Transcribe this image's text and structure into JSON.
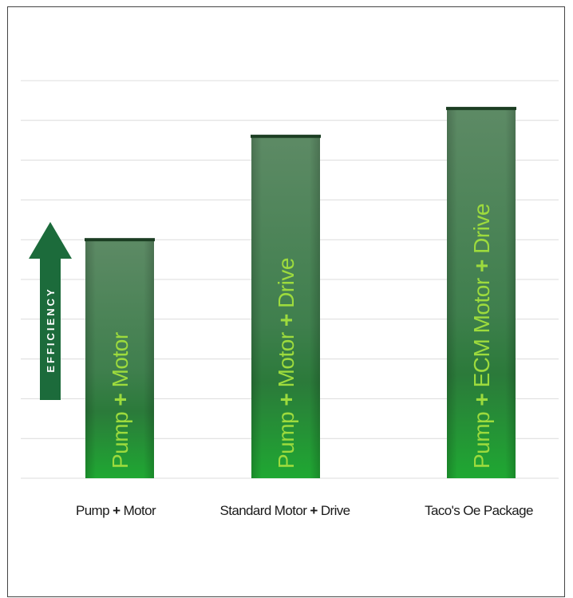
{
  "chart_data": {
    "type": "bar",
    "categories": [
      "Pump + Motor",
      "Standard Motor + Drive",
      "Taco's Oe Package"
    ],
    "category_parts": [
      [
        "Pump",
        "Motor"
      ],
      [
        "Standard Motor",
        "Drive"
      ],
      [
        "Taco's Oe Package"
      ]
    ],
    "bar_labels": [
      "Pump + Motor",
      "Pump + Motor + Drive",
      "Pump + ECM Motor + Drive"
    ],
    "bar_label_parts": [
      [
        "Pump",
        "Motor"
      ],
      [
        "Pump",
        "Motor",
        "Drive"
      ],
      [
        "Pump",
        "ECM Motor",
        "Drive"
      ]
    ],
    "values": [
      6.0,
      8.6,
      9.3
    ],
    "ylim": [
      0,
      10
    ],
    "grid": true,
    "yaxis_indicator": "EFFICIENCY",
    "colors": {
      "bar_top": "#5d8a65",
      "bar_bottom": "#1fa832",
      "bar_cap": "#1b3d22",
      "bar_label": "#9ddb3d",
      "arrow": "#1c6b3b",
      "gridline": "#dcdcdc"
    }
  }
}
